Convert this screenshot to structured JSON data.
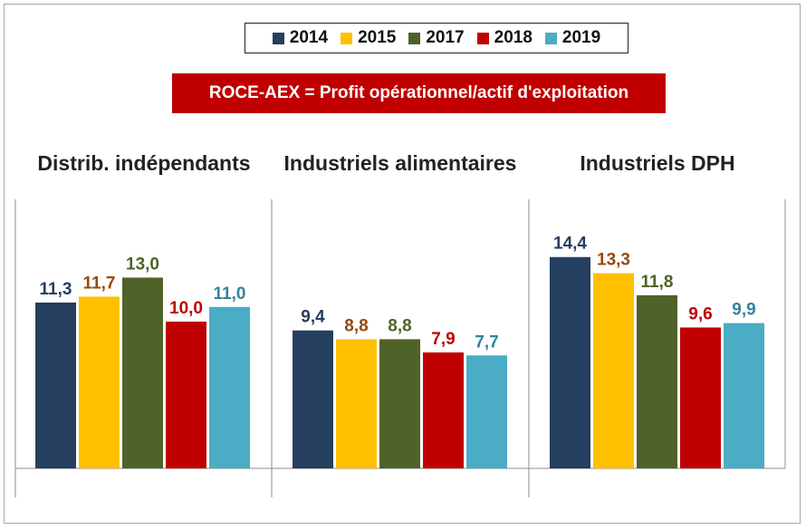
{
  "legend": [
    {
      "label": "2014",
      "color": "#243f60"
    },
    {
      "label": "2015",
      "color": "#ffc000"
    },
    {
      "label": "2017",
      "color": "#4f6228"
    },
    {
      "label": "2018",
      "color": "#c00000"
    },
    {
      "label": "2019",
      "color": "#4bacc6"
    }
  ],
  "formula": "ROCE-AEX = Profit opérationnel/actif d'exploitation",
  "label_colors": [
    "#243f60",
    "#984807",
    "#4f6228",
    "#c00000",
    "#31849b"
  ],
  "chart_data": {
    "type": "bar",
    "series_names": [
      "2014",
      "2015",
      "2017",
      "2018",
      "2019"
    ],
    "groups": [
      {
        "title": "Distrib. indépendants",
        "values": [
          11.3,
          11.7,
          13.0,
          10.0,
          11.0
        ],
        "labels": [
          "11,3",
          "11,7",
          "13,0",
          "10,0",
          "11,0"
        ]
      },
      {
        "title": "Industriels alimentaires",
        "values": [
          9.4,
          8.8,
          8.8,
          7.9,
          7.7
        ],
        "labels": [
          "9,4",
          "8,8",
          "8,8",
          "7,9",
          "7,7"
        ]
      },
      {
        "title": "Industriels DPH",
        "values": [
          14.4,
          13.3,
          11.8,
          9.6,
          9.9
        ],
        "labels": [
          "14,4",
          "13,3",
          "11,8",
          "9,6",
          "9,9"
        ]
      }
    ],
    "ylim": [
      0,
      16
    ],
    "grid": false,
    "legend_position": "top"
  }
}
